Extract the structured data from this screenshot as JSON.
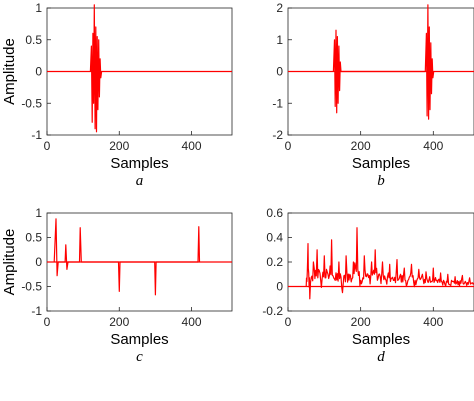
{
  "chart_data": [
    {
      "type": "line",
      "caption": "a",
      "xlabel": "Samples",
      "ylabel": "Amplitude",
      "xlim": [
        0,
        512
      ],
      "ylim": [
        -1,
        1
      ],
      "xticks": [
        0,
        200,
        400
      ],
      "yticks": [
        -1,
        -0.5,
        0,
        0.5,
        1
      ],
      "color": "#ff0000",
      "baseline": 0,
      "series": [
        {
          "values": [
            [
              120,
              0
            ],
            [
              123,
              0.4
            ],
            [
              125,
              -0.8
            ],
            [
              127,
              0.6
            ],
            [
              129,
              -0.5
            ],
            [
              131,
              1.05
            ],
            [
              133,
              -0.9
            ],
            [
              135,
              0.7
            ],
            [
              137,
              -0.95
            ],
            [
              139,
              0.55
            ],
            [
              141,
              -0.6
            ],
            [
              143,
              0.5
            ],
            [
              145,
              -0.4
            ],
            [
              147,
              0.2
            ],
            [
              149,
              -0.1
            ],
            [
              151,
              0
            ]
          ]
        }
      ]
    },
    {
      "type": "line",
      "caption": "b",
      "xlabel": "Samples",
      "ylabel": "",
      "xlim": [
        0,
        512
      ],
      "ylim": [
        -2,
        2
      ],
      "xticks": [
        0,
        200,
        400
      ],
      "yticks": [
        -2,
        -1,
        0,
        1,
        2
      ],
      "color": "#ff0000",
      "baseline": 0,
      "series": [
        {
          "values": [
            [
              125,
              0
            ],
            [
              128,
              1.0
            ],
            [
              130,
              -1.1
            ],
            [
              132,
              1.3
            ],
            [
              134,
              -1.3
            ],
            [
              136,
              1.1
            ],
            [
              138,
              -1.0
            ],
            [
              140,
              0.8
            ],
            [
              142,
              -0.6
            ],
            [
              144,
              0.3
            ],
            [
              146,
              0
            ],
            [
              378,
              0
            ],
            [
              381,
              1.2
            ],
            [
              383,
              -1.4
            ],
            [
              385,
              2.1
            ],
            [
              387,
              -1.5
            ],
            [
              389,
              1.4
            ],
            [
              391,
              -1.2
            ],
            [
              393,
              0.9
            ],
            [
              395,
              -0.7
            ],
            [
              397,
              0.4
            ],
            [
              399,
              -0.2
            ],
            [
              401,
              0
            ]
          ]
        }
      ]
    },
    {
      "type": "line",
      "caption": "c",
      "xlabel": "Samples",
      "ylabel": "Amplitude",
      "xlim": [
        0,
        512
      ],
      "ylim": [
        -1,
        1
      ],
      "xticks": [
        0,
        200,
        400
      ],
      "yticks": [
        -1,
        -0.5,
        0,
        0.5,
        1
      ],
      "color": "#ff0000",
      "baseline": 0,
      "series": [
        {
          "values": [
            [
              20,
              0
            ],
            [
              25,
              0.88
            ],
            [
              28,
              -0.28
            ],
            [
              31,
              0
            ],
            [
              50,
              0
            ],
            [
              52,
              0.35
            ],
            [
              55,
              -0.15
            ],
            [
              58,
              0
            ],
            [
              90,
              0
            ],
            [
              92,
              0.7
            ],
            [
              95,
              0
            ],
            [
              198,
              0
            ],
            [
              200,
              -0.6
            ],
            [
              202,
              0
            ],
            [
              298,
              0
            ],
            [
              300,
              -0.67
            ],
            [
              302,
              0
            ],
            [
              418,
              0
            ],
            [
              420,
              0.72
            ],
            [
              422,
              0
            ]
          ]
        }
      ]
    },
    {
      "type": "line",
      "caption": "d",
      "xlabel": "Samples",
      "ylabel": "",
      "xlim": [
        0,
        512
      ],
      "ylim": [
        -0.2,
        0.6
      ],
      "xticks": [
        0,
        200,
        400
      ],
      "yticks": [
        -0.2,
        0,
        0.2,
        0.4,
        0.6
      ],
      "color": "#ff0000",
      "baseline": 0,
      "noise_region": [
        50,
        512
      ],
      "series": [
        {
          "values": [
            [
              50,
              0
            ],
            [
              55,
              0.35
            ],
            [
              60,
              -0.1
            ],
            [
              70,
              0.2
            ],
            [
              80,
              0.3
            ],
            [
              90,
              0.05
            ],
            [
              100,
              0.25
            ],
            [
              110,
              0.1
            ],
            [
              120,
              0.38
            ],
            [
              130,
              0.05
            ],
            [
              140,
              0.2
            ],
            [
              150,
              -0.05
            ],
            [
              160,
              0.25
            ],
            [
              170,
              0.1
            ],
            [
              180,
              0.2
            ],
            [
              190,
              0.48
            ],
            [
              200,
              0.05
            ],
            [
              210,
              0.25
            ],
            [
              220,
              0.1
            ],
            [
              230,
              0.2
            ],
            [
              240,
              0.3
            ],
            [
              250,
              0.1
            ],
            [
              260,
              0.2
            ],
            [
              270,
              0.05
            ],
            [
              280,
              0.18
            ],
            [
              290,
              0.05
            ],
            [
              300,
              0.22
            ],
            [
              310,
              0.1
            ],
            [
              320,
              0.15
            ],
            [
              330,
              0.05
            ],
            [
              340,
              0.18
            ],
            [
              350,
              0.05
            ],
            [
              360,
              0.14
            ],
            [
              370,
              0.1
            ],
            [
              380,
              0.12
            ],
            [
              390,
              0.08
            ],
            [
              400,
              0.15
            ],
            [
              410,
              0.05
            ],
            [
              420,
              0.11
            ],
            [
              430,
              0.04
            ],
            [
              440,
              0.1
            ],
            [
              450,
              0.05
            ],
            [
              460,
              0.08
            ],
            [
              470,
              0.04
            ],
            [
              480,
              0.09
            ],
            [
              490,
              0.03
            ],
            [
              500,
              0.07
            ],
            [
              512,
              0.03
            ]
          ]
        }
      ]
    }
  ]
}
